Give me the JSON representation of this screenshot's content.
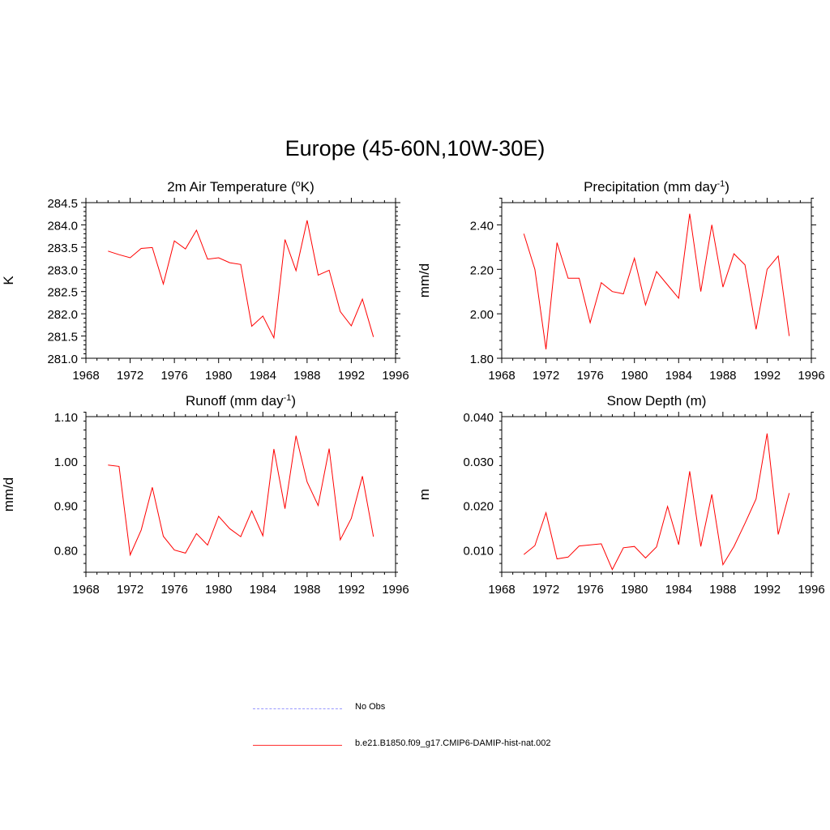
{
  "figure": {
    "title": "Europe (45-60N,10W-30E)"
  },
  "legend": {
    "items": [
      {
        "label": "No Obs",
        "color": "#9999ff",
        "style": "dashed"
      },
      {
        "label": "b.e21.B1850.f09_g17.CMIP6-DAMIP-hist-nat.002",
        "color": "#ff0000",
        "style": "solid"
      }
    ]
  },
  "chart_data": [
    {
      "type": "line",
      "title": "2m Air Temperature (°K)",
      "title_parts": {
        "pre": "2m Air Temperature (",
        "sup": "o",
        "post": "K)"
      },
      "xlabel": "",
      "ylabel": "K",
      "xlim": [
        1968,
        1996
      ],
      "xticks": [
        1968,
        1972,
        1976,
        1980,
        1984,
        1988,
        1992,
        1996
      ],
      "ylim": [
        281.0,
        284.5
      ],
      "yticks": [
        281.0,
        281.5,
        282.0,
        282.5,
        283.0,
        283.5,
        284.0,
        284.5
      ],
      "ytick_labels": [
        "281.0",
        "281.5",
        "282.0",
        "282.5",
        "283.0",
        "283.5",
        "284.0",
        "284.5"
      ],
      "series": [
        {
          "color": "#ff0000",
          "x": [
            1970,
            1971,
            1972,
            1973,
            1974,
            1975,
            1976,
            1977,
            1978,
            1979,
            1980,
            1981,
            1982,
            1983,
            1984,
            1985,
            1986,
            1987,
            1988,
            1989,
            1990,
            1991,
            1992,
            1993,
            1994
          ],
          "y": [
            283.41,
            283.33,
            283.26,
            283.47,
            283.49,
            282.67,
            283.64,
            283.46,
            283.88,
            283.23,
            283.26,
            283.15,
            283.11,
            281.72,
            281.95,
            281.46,
            283.67,
            282.97,
            284.1,
            282.87,
            282.98,
            282.05,
            281.73,
            282.33,
            281.48
          ]
        }
      ]
    },
    {
      "type": "line",
      "title": "Precipitation (mm day-1)",
      "title_parts": {
        "pre": "Precipitation (mm day",
        "sup": "-1",
        "post": ")"
      },
      "xlabel": "",
      "ylabel": "mm/d",
      "xlim": [
        1968,
        1996
      ],
      "xticks": [
        1968,
        1972,
        1976,
        1980,
        1984,
        1988,
        1992,
        1996
      ],
      "ylim": [
        1.8,
        2.5
      ],
      "yticks": [
        1.8,
        2.0,
        2.2,
        2.4
      ],
      "ytick_labels": [
        "1.80",
        "2.00",
        "2.20",
        "2.40"
      ],
      "series": [
        {
          "color": "#ff0000",
          "x": [
            1970,
            1971,
            1972,
            1973,
            1974,
            1975,
            1976,
            1977,
            1978,
            1979,
            1980,
            1981,
            1982,
            1983,
            1984,
            1985,
            1986,
            1987,
            1988,
            1989,
            1990,
            1991,
            1992,
            1993,
            1994
          ],
          "y": [
            2.36,
            2.2,
            1.84,
            2.32,
            2.16,
            2.16,
            1.96,
            2.14,
            2.1,
            2.09,
            2.25,
            2.04,
            2.19,
            2.13,
            2.07,
            2.45,
            2.1,
            2.4,
            2.12,
            2.27,
            2.22,
            1.93,
            2.2,
            2.26,
            1.9
          ]
        }
      ]
    },
    {
      "type": "line",
      "title": "Runoff (mm day-1)",
      "title_parts": {
        "pre": "Runoff (mm day",
        "sup": "-1",
        "post": ")"
      },
      "xlabel": "",
      "ylabel": "mm/d",
      "xlim": [
        1968,
        1996
      ],
      "xticks": [
        1968,
        1972,
        1976,
        1980,
        1984,
        1988,
        1992,
        1996
      ],
      "ylim": [
        0.75,
        1.1
      ],
      "yticks": [
        0.8,
        0.9,
        1.0,
        1.1
      ],
      "ytick_labels": [
        "0.80",
        "0.90",
        "1.00",
        "1.10"
      ],
      "series": [
        {
          "color": "#ff0000",
          "x": [
            1970,
            1971,
            1972,
            1973,
            1974,
            1975,
            1976,
            1977,
            1978,
            1979,
            1980,
            1981,
            1982,
            1983,
            1984,
            1985,
            1986,
            1987,
            1988,
            1989,
            1990,
            1991,
            1992,
            1993,
            1994
          ],
          "y": [
            0.991,
            0.988,
            0.789,
            0.845,
            0.941,
            0.831,
            0.8,
            0.793,
            0.837,
            0.811,
            0.876,
            0.848,
            0.83,
            0.888,
            0.832,
            1.027,
            0.893,
            1.057,
            0.953,
            0.9,
            1.028,
            0.823,
            0.871,
            0.966,
            0.83
          ]
        }
      ]
    },
    {
      "type": "line",
      "title": "Snow Depth (m)",
      "title_parts": {
        "pre": "Snow Depth (m)",
        "sup": "",
        "post": ""
      },
      "xlabel": "",
      "ylabel": "m",
      "xlim": [
        1968,
        1996
      ],
      "xticks": [
        1968,
        1972,
        1976,
        1980,
        1984,
        1988,
        1992,
        1996
      ],
      "ylim": [
        0.005,
        0.04
      ],
      "yticks": [
        0.01,
        0.02,
        0.03,
        0.04
      ],
      "ytick_labels": [
        "0.010",
        "0.020",
        "0.030",
        "0.040"
      ],
      "series": [
        {
          "color": "#ff0000",
          "x": [
            1970,
            1971,
            1972,
            1973,
            1974,
            1975,
            1977,
            1978,
            1979,
            1980,
            1981,
            1982,
            1983,
            1984,
            1985,
            1986,
            1987,
            1988,
            1989,
            1990,
            1991,
            1992,
            1993,
            1994
          ],
          "y": [
            0.009,
            0.011,
            0.0184,
            0.008,
            0.0084,
            0.0109,
            0.0114,
            0.0056,
            0.0105,
            0.0108,
            0.0082,
            0.0107,
            0.0198,
            0.0112,
            0.0277,
            0.0108,
            0.0225,
            0.0067,
            0.0108,
            0.016,
            0.0215,
            0.0362,
            0.0135,
            0.0228
          ]
        }
      ]
    }
  ]
}
